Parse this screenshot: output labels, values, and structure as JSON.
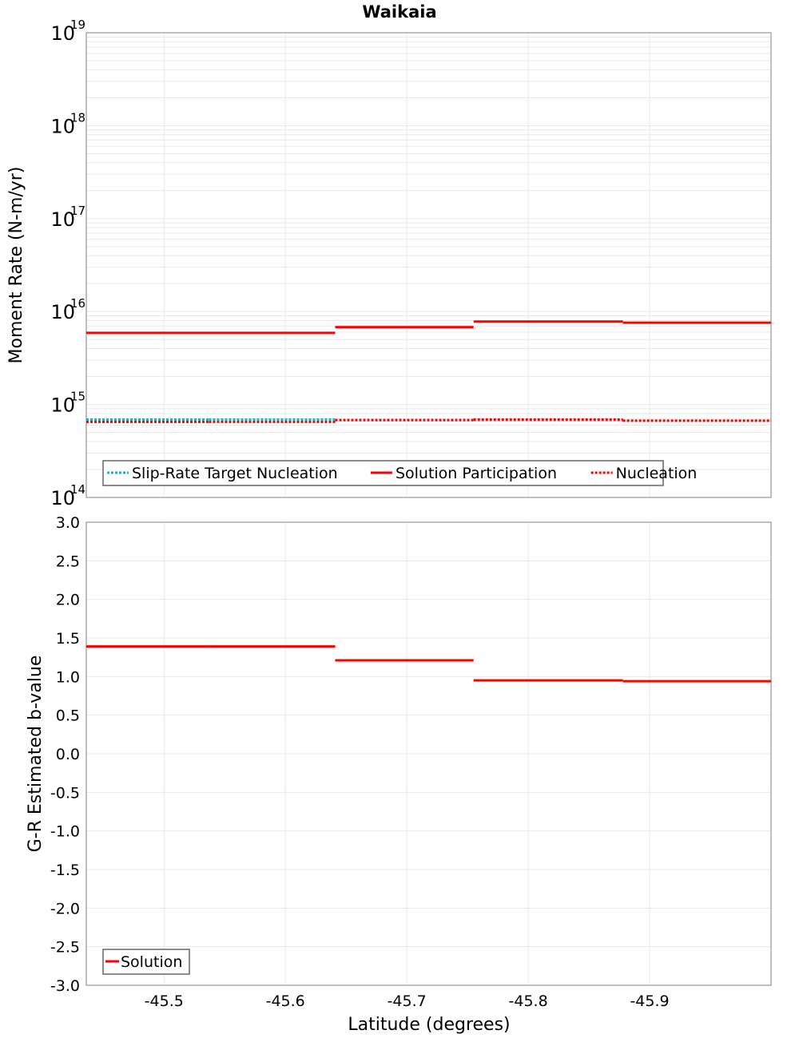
{
  "title": "Waikaia",
  "colors": {
    "solution": "#ff0000",
    "target": "#17b5c0",
    "grid": "#e8e8e8",
    "frame": "#aaaaaa"
  },
  "chart_data": [
    {
      "type": "line",
      "subtype": "step",
      "title": "Waikaia",
      "xlabel": "Latitude (degrees)",
      "ylabel": "Moment Rate (N-m/yr)",
      "yscale": "log",
      "ylim": [
        100000000000000.0,
        1e+19
      ],
      "xlim": [
        -45.436,
        -46.0
      ],
      "ytick_labels": [
        {
          "base": "10",
          "exp": "19"
        },
        {
          "base": "10",
          "exp": "18"
        },
        {
          "base": "10",
          "exp": "17"
        },
        {
          "base": "10",
          "exp": "16"
        },
        {
          "base": "10",
          "exp": "15"
        },
        {
          "base": "10",
          "exp": "14"
        }
      ],
      "grid": true,
      "legend_position": "lower-left",
      "x_bin_edges": [
        -45.436,
        -45.537,
        -45.641,
        -45.755,
        -45.878,
        -46.0
      ],
      "series": [
        {
          "name": "Slip-Rate Target Nucleation",
          "style": "dotted",
          "color": "#17b5c0",
          "values": [
            690000000000000.0,
            690000000000000.0,
            680000000000000.0,
            680000000000000.0,
            670000000000000.0
          ]
        },
        {
          "name": "Solution Participation",
          "style": "solid",
          "color": "#ff0000",
          "values": [
            5900000000000000.0,
            5900000000000000.0,
            6800000000000000.0,
            7800000000000000.0,
            7600000000000000.0
          ]
        },
        {
          "name": "Nucleation",
          "style": "dotted",
          "color": "#ff0000",
          "values": [
            650000000000000.0,
            650000000000000.0,
            680000000000000.0,
            690000000000000.0,
            670000000000000.0
          ]
        }
      ]
    },
    {
      "type": "line",
      "subtype": "step",
      "xlabel": "Latitude (degrees)",
      "ylabel": "G-R Estimated b-value",
      "ylim": [
        -3.0,
        3.0
      ],
      "xlim": [
        -45.436,
        -46.0
      ],
      "ytick_labels": [
        "3.0",
        "2.5",
        "2.0",
        "1.5",
        "1.0",
        "0.5",
        "0.0",
        "-0.5",
        "-1.0",
        "-1.5",
        "-2.0",
        "-2.5",
        "-3.0"
      ],
      "xtick_labels": [
        "-45.5",
        "-45.6",
        "-45.7",
        "-45.8",
        "-45.9"
      ],
      "grid": true,
      "legend_position": "lower-left",
      "x_bin_edges": [
        -45.436,
        -45.537,
        -45.641,
        -45.755,
        -45.878,
        -46.0
      ],
      "series": [
        {
          "name": "Solution",
          "style": "solid",
          "color": "#ff0000",
          "values": [
            1.39,
            1.39,
            1.21,
            0.95,
            0.94
          ]
        }
      ]
    }
  ]
}
